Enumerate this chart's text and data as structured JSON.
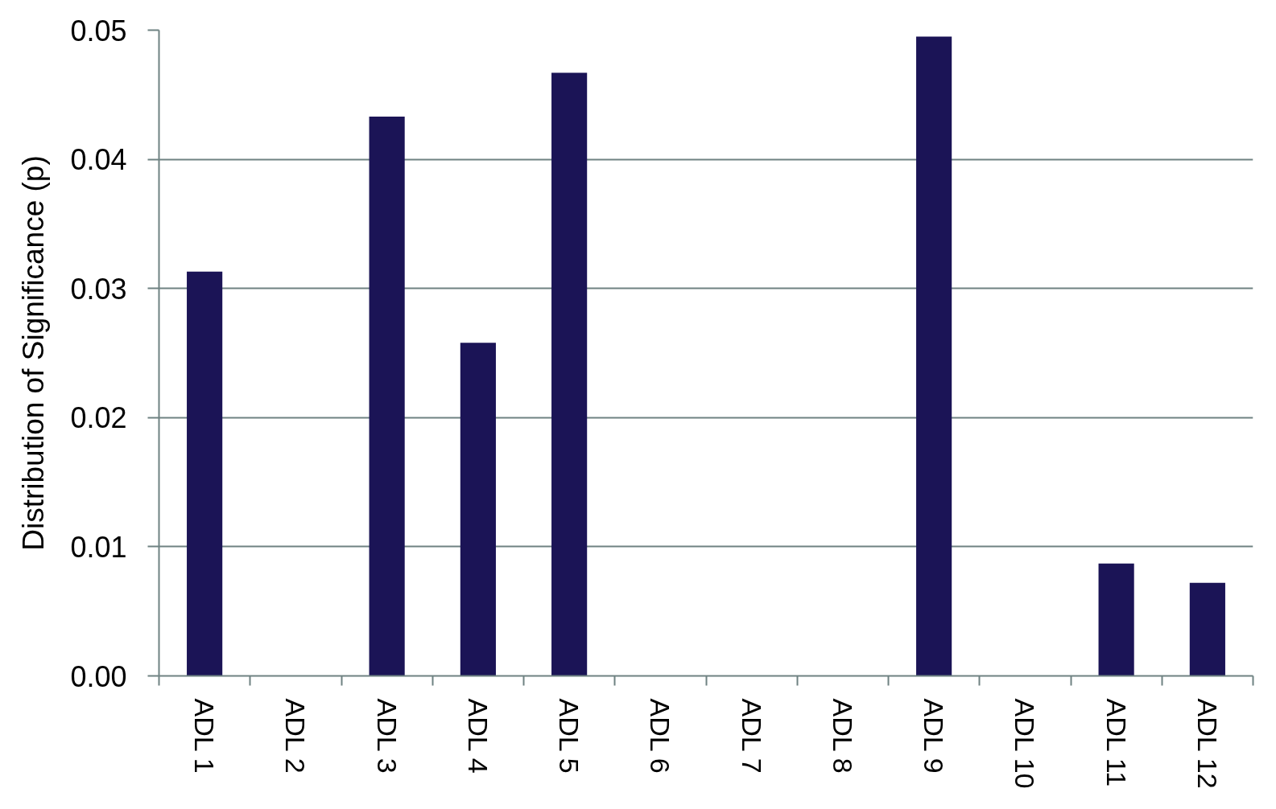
{
  "chart_data": {
    "type": "bar",
    "ylabel": "Distribution of Significance (p)",
    "categories": [
      "ADL 1",
      "ADL 2",
      "ADL 3",
      "ADL 4",
      "ADL 5",
      "ADL 6",
      "ADL 7",
      "ADL 8",
      "ADL 9",
      "ADL 10",
      "ADL 11",
      "ADL 12"
    ],
    "values": [
      0.0313,
      null,
      0.0433,
      0.0258,
      0.0467,
      null,
      null,
      null,
      0.0495,
      null,
      0.0087,
      0.0072
    ],
    "color": "#1b1456",
    "ylim": [
      0,
      0.05
    ],
    "yticks": [
      {
        "value": 0,
        "label": "0.00"
      },
      0.01,
      0.02,
      0.03,
      0.04,
      0.05
    ],
    "grid": "y"
  }
}
